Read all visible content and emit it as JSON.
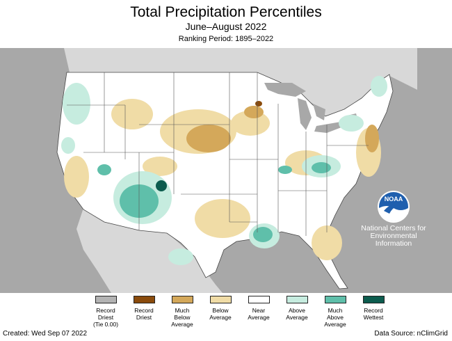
{
  "title": "Total Precipitation Percentiles",
  "subtitle": "June–August 2022",
  "ranking_period": "Ranking Period: 1895–2022",
  "logo": {
    "name": "noaa-logo",
    "text": "NOAA"
  },
  "agency": {
    "line1": "National Centers for",
    "line2": "Environmental",
    "line3": "Information"
  },
  "colors": {
    "record_driest_tie": "#b3b3b3",
    "record_driest": "#8a4b0c",
    "much_below_average": "#d4a85a",
    "below_average": "#f0dca6",
    "near_average": "#ffffff",
    "above_average": "#c6ecdf",
    "much_above_average": "#5fbfaa",
    "record_wettest": "#0c5c4e",
    "land_outside": "#d8d8d8",
    "water": "#a8a8a8"
  },
  "legend": [
    {
      "lines": [
        "Record",
        "Driest",
        "(Tie 0.00)"
      ],
      "color": "#b3b3b3"
    },
    {
      "lines": [
        "Record",
        "Driest"
      ],
      "color": "#8a4b0c"
    },
    {
      "lines": [
        "Much",
        "Below",
        "Average"
      ],
      "color": "#d4a85a"
    },
    {
      "lines": [
        "Below",
        "Average"
      ],
      "color": "#f0dca6"
    },
    {
      "lines": [
        "Near",
        "Average"
      ],
      "color": "#ffffff"
    },
    {
      "lines": [
        "Above",
        "Average"
      ],
      "color": "#c6ecdf"
    },
    {
      "lines": [
        "Much",
        "Above",
        "Average"
      ],
      "color": "#5fbfaa"
    },
    {
      "lines": [
        "Record",
        "Wettest"
      ],
      "color": "#0c5c4e"
    }
  ],
  "footer": {
    "created": "Created: Wed Sep 07 2022",
    "source": "Data Source: nClimGrid"
  }
}
